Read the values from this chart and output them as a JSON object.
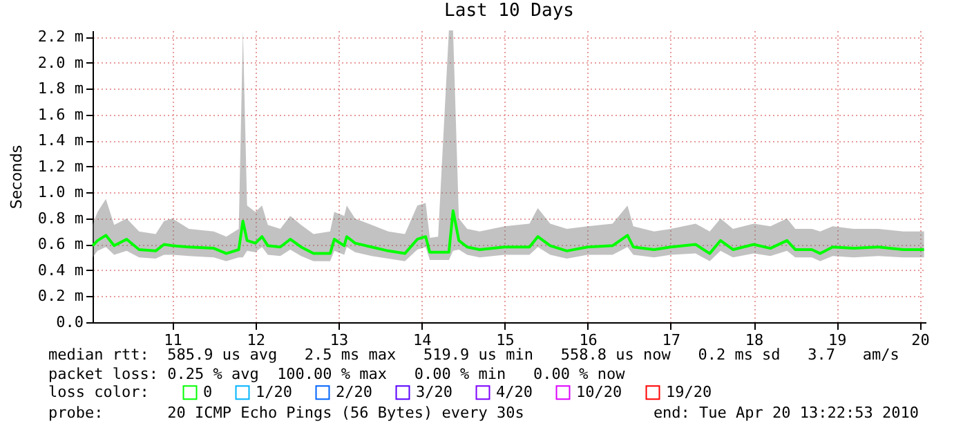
{
  "chart_data": {
    "type": "line",
    "title": "Last 10 Days",
    "ylabel": "Seconds",
    "legend_title": "loss color:",
    "legend": "bottom",
    "grid": true,
    "xlim": [
      10.04,
      20.07
    ],
    "xticks": [
      11,
      12,
      13,
      14,
      15,
      16,
      17,
      18,
      19,
      20
    ],
    "ylim": [
      0,
      2.25
    ],
    "yticks": [
      {
        "value": 0,
        "label": "0.0"
      },
      {
        "value": 0.2,
        "label": "0.2 m"
      },
      {
        "value": 0.4,
        "label": "0.4 m"
      },
      {
        "value": 0.6,
        "label": "0.6 m"
      },
      {
        "value": 0.8,
        "label": "0.8 m"
      },
      {
        "value": 1.0,
        "label": "1.0 m"
      },
      {
        "value": 1.2,
        "label": "1.2 m"
      },
      {
        "value": 1.4,
        "label": "1.4 m"
      },
      {
        "value": 1.6,
        "label": "1.6 m"
      },
      {
        "value": 1.8,
        "label": "1.8 m"
      },
      {
        "value": 2.0,
        "label": "2.0 m"
      },
      {
        "value": 2.2,
        "label": "2.2 m"
      }
    ],
    "x": [
      10.04,
      10.1,
      10.2,
      10.3,
      10.45,
      10.6,
      10.8,
      10.9,
      11.0,
      11.2,
      11.5,
      11.65,
      11.8,
      11.85,
      11.9,
      12.0,
      12.08,
      12.15,
      12.3,
      12.42,
      12.55,
      12.7,
      12.9,
      12.95,
      13.07,
      13.1,
      13.2,
      13.4,
      13.6,
      13.8,
      13.95,
      14.05,
      14.1,
      14.2,
      14.33,
      14.38,
      14.45,
      14.55,
      14.7,
      15.0,
      15.3,
      15.4,
      15.55,
      15.75,
      16.0,
      16.3,
      16.48,
      16.55,
      16.8,
      17.0,
      17.3,
      17.47,
      17.6,
      17.75,
      18.0,
      18.2,
      18.4,
      18.5,
      18.7,
      18.8,
      18.95,
      19.2,
      19.5,
      19.8,
      20.05
    ],
    "series": [
      {
        "name": "0",
        "color": "#00ff00",
        "values": [
          0.59,
          0.63,
          0.67,
          0.59,
          0.64,
          0.56,
          0.55,
          0.6,
          0.59,
          0.58,
          0.57,
          0.53,
          0.56,
          0.78,
          0.63,
          0.61,
          0.66,
          0.59,
          0.58,
          0.64,
          0.58,
          0.53,
          0.53,
          0.64,
          0.59,
          0.66,
          0.61,
          0.58,
          0.55,
          0.53,
          0.64,
          0.66,
          0.54,
          0.54,
          0.54,
          0.86,
          0.63,
          0.58,
          0.56,
          0.58,
          0.58,
          0.66,
          0.59,
          0.55,
          0.58,
          0.59,
          0.67,
          0.58,
          0.56,
          0.58,
          0.6,
          0.53,
          0.63,
          0.56,
          0.6,
          0.57,
          0.63,
          0.56,
          0.56,
          0.53,
          0.58,
          0.57,
          0.58,
          0.56,
          0.56
        ],
        "lower": [
          0.5,
          0.55,
          0.58,
          0.52,
          0.55,
          0.5,
          0.49,
          0.52,
          0.52,
          0.51,
          0.5,
          0.47,
          0.5,
          0.5,
          0.55,
          0.54,
          0.58,
          0.52,
          0.51,
          0.56,
          0.51,
          0.47,
          0.47,
          0.55,
          0.52,
          0.58,
          0.54,
          0.51,
          0.49,
          0.47,
          0.56,
          0.58,
          0.48,
          0.48,
          0.48,
          0.55,
          0.56,
          0.52,
          0.5,
          0.52,
          0.52,
          0.58,
          0.52,
          0.49,
          0.52,
          0.52,
          0.58,
          0.52,
          0.5,
          0.52,
          0.53,
          0.47,
          0.55,
          0.5,
          0.53,
          0.51,
          0.55,
          0.5,
          0.5,
          0.47,
          0.51,
          0.5,
          0.51,
          0.5,
          0.5
        ],
        "upper": [
          0.75,
          0.85,
          0.95,
          0.75,
          0.8,
          0.7,
          0.68,
          0.78,
          0.8,
          0.72,
          0.7,
          0.66,
          0.72,
          2.25,
          0.9,
          0.85,
          0.9,
          0.75,
          0.72,
          0.82,
          0.75,
          0.68,
          0.7,
          0.85,
          0.82,
          0.9,
          0.8,
          0.75,
          0.7,
          0.68,
          0.9,
          0.92,
          0.65,
          0.66,
          2.25,
          2.25,
          0.8,
          0.72,
          0.7,
          0.74,
          0.76,
          0.88,
          0.76,
          0.72,
          0.74,
          0.76,
          0.9,
          0.74,
          0.7,
          0.72,
          0.76,
          0.7,
          0.8,
          0.72,
          0.76,
          0.74,
          0.8,
          0.72,
          0.72,
          0.7,
          0.74,
          0.72,
          0.72,
          0.7,
          0.7
        ]
      },
      {
        "name": "1/20",
        "color": "#00b4ff",
        "values": [
          null,
          null,
          null,
          null,
          null,
          null,
          null,
          null,
          null,
          null,
          null,
          null,
          null,
          null,
          null,
          null,
          null,
          null,
          null,
          null,
          null,
          null,
          null,
          null,
          null,
          null,
          null,
          null,
          null,
          null,
          null,
          null,
          null,
          null,
          null,
          null,
          null,
          null,
          null,
          null,
          null,
          null,
          null,
          null,
          null,
          null,
          null,
          null,
          null,
          null,
          null,
          null,
          null,
          null,
          null,
          null,
          null,
          null,
          null,
          null,
          null,
          null,
          null,
          null,
          null
        ]
      },
      {
        "name": "2/20",
        "color": "#0064ff",
        "values": [
          null,
          null,
          null,
          null,
          null,
          null,
          null,
          null,
          null,
          null,
          null,
          null,
          null,
          null,
          null,
          null,
          null,
          null,
          null,
          null,
          null,
          null,
          null,
          null,
          null,
          null,
          null,
          null,
          null,
          null,
          null,
          null,
          null,
          null,
          null,
          null,
          null,
          null,
          null,
          null,
          null,
          null,
          null,
          null,
          null,
          null,
          null,
          null,
          null,
          null,
          null,
          null,
          null,
          null,
          null,
          null,
          null,
          null,
          null,
          null,
          null,
          null,
          null,
          null,
          null
        ]
      },
      {
        "name": "3/20",
        "color": "#5a00ff",
        "values": [
          null,
          null,
          null,
          null,
          null,
          null,
          null,
          null,
          null,
          null,
          null,
          null,
          null,
          null,
          null,
          null,
          null,
          null,
          null,
          null,
          null,
          null,
          null,
          null,
          null,
          null,
          null,
          null,
          null,
          null,
          null,
          null,
          null,
          null,
          null,
          null,
          null,
          null,
          null,
          null,
          null,
          null,
          null,
          null,
          null,
          null,
          null,
          null,
          null,
          null,
          null,
          null,
          null,
          null,
          null,
          null,
          null,
          null,
          null,
          null,
          null,
          null,
          null,
          null,
          null
        ]
      },
      {
        "name": "4/20",
        "color": "#7e00ff",
        "values": [
          null,
          null,
          null,
          null,
          null,
          null,
          null,
          null,
          null,
          null,
          null,
          null,
          null,
          null,
          null,
          null,
          null,
          null,
          null,
          null,
          null,
          null,
          null,
          null,
          null,
          null,
          null,
          null,
          null,
          null,
          null,
          null,
          null,
          null,
          null,
          null,
          null,
          null,
          null,
          null,
          null,
          null,
          null,
          null,
          null,
          null,
          null,
          null,
          null,
          null,
          null,
          null,
          null,
          null,
          null,
          null,
          null,
          null,
          null,
          null,
          null,
          null,
          null,
          null,
          null
        ]
      },
      {
        "name": "10/20",
        "color": "#dd00ff",
        "values": [
          null,
          null,
          null,
          null,
          null,
          null,
          null,
          null,
          null,
          null,
          null,
          null,
          null,
          null,
          null,
          null,
          null,
          null,
          null,
          null,
          null,
          null,
          null,
          null,
          null,
          null,
          null,
          null,
          null,
          null,
          null,
          null,
          null,
          null,
          null,
          null,
          null,
          null,
          null,
          null,
          null,
          null,
          null,
          null,
          null,
          null,
          null,
          null,
          null,
          null,
          null,
          null,
          null,
          null,
          null,
          null,
          null,
          null,
          null,
          null,
          null,
          null,
          null,
          null,
          null
        ]
      },
      {
        "name": "19/20",
        "color": "#ff0000",
        "values": [
          null,
          null,
          null,
          null,
          null,
          null,
          null,
          null,
          null,
          null,
          null,
          null,
          null,
          null,
          null,
          null,
          null,
          null,
          null,
          null,
          null,
          null,
          null,
          null,
          null,
          null,
          null,
          null,
          null,
          null,
          null,
          null,
          null,
          null,
          null,
          null,
          null,
          null,
          null,
          null,
          null,
          null,
          null,
          null,
          null,
          null,
          null,
          null,
          null,
          null,
          null,
          null,
          null,
          null,
          null,
          null,
          null,
          null,
          null,
          null,
          null,
          null,
          null,
          null,
          null
        ]
      }
    ],
    "annotations": [
      "median rtt:  585.9 us avg   2.5 ms max   519.9 us min   558.8 us now   0.2 ms sd   3.7   am/s",
      "packet loss: 0.25 % avg  100.00 % max   0.00 % min   0.00 % now",
      "probe:       20 ICMP Echo Pings (56 Bytes) every 30s",
      "end: Tue Apr 20 13:22:53 2010"
    ]
  }
}
